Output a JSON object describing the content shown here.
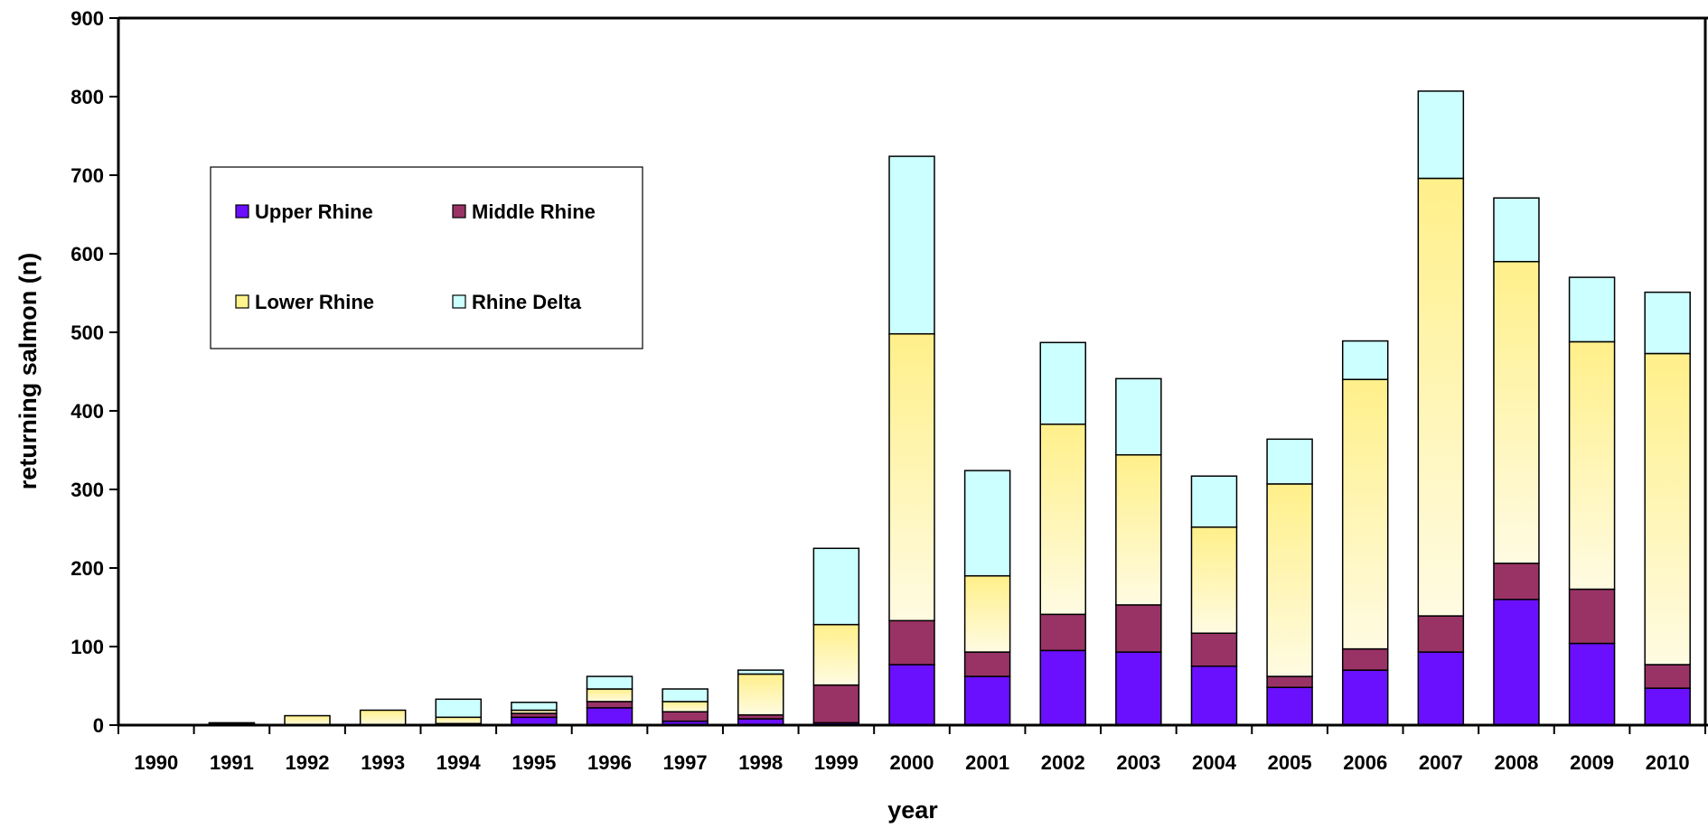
{
  "chart_data": {
    "type": "bar",
    "stacked": true,
    "title": "",
    "xlabel": "year",
    "ylabel": "returning salmon (n)",
    "ylim": [
      0,
      900
    ],
    "yticks": [
      0,
      100,
      200,
      300,
      400,
      500,
      600,
      700,
      800,
      900
    ],
    "grid": false,
    "legend_position": "top-left",
    "categories": [
      "1990",
      "1991",
      "1992",
      "1993",
      "1994",
      "1995",
      "1996",
      "1997",
      "1998",
      "1999",
      "2000",
      "2001",
      "2002",
      "2003",
      "2004",
      "2005",
      "2006",
      "2007",
      "2008",
      "2009",
      "2010"
    ],
    "series": [
      {
        "name": "Upper Rhine",
        "color": "#6a10ff",
        "values": [
          0,
          0,
          0,
          0,
          0,
          10,
          22,
          5,
          8,
          3,
          77,
          62,
          95,
          93,
          75,
          48,
          70,
          93,
          160,
          104,
          47
        ]
      },
      {
        "name": "Middle Rhine",
        "color": "#993366",
        "values": [
          0,
          1,
          0,
          0,
          2,
          5,
          8,
          12,
          5,
          48,
          56,
          31,
          46,
          60,
          42,
          14,
          27,
          46,
          46,
          69,
          30
        ]
      },
      {
        "name": "Lower Rhine",
        "color": "#fff48c",
        "values": [
          0,
          1,
          12,
          19,
          8,
          4,
          16,
          13,
          52,
          77,
          365,
          97,
          242,
          191,
          135,
          245,
          343,
          557,
          384,
          315,
          396
        ]
      },
      {
        "name": "Rhine Delta",
        "color": "#ccffff",
        "values": [
          0,
          1,
          0,
          0,
          23,
          10,
          16,
          16,
          5,
          97,
          226,
          134,
          104,
          97,
          65,
          57,
          49,
          111,
          81,
          82,
          78
        ]
      }
    ]
  }
}
